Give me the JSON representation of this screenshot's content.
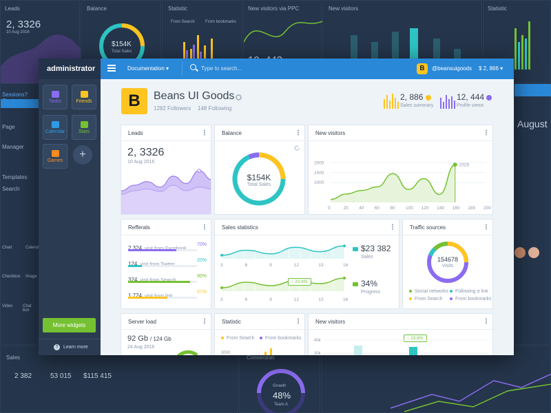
{
  "background": {
    "leads_title": "Leads",
    "leads_value": "2, 3326",
    "leads_date": "10 Aug 2016",
    "balance_title": "Balance",
    "balance_value": "$154K",
    "balance_sub": "Total Sales",
    "statistic_title": "Statistic",
    "statistic_leg1": "From Search",
    "statistic_leg2": "From bookmarks",
    "ppc_title": "New visitors via PPC",
    "ppc_value": "10, 443",
    "nv_title": "New visitors",
    "stat2_title": "Statistic",
    "sales_title": "Sales",
    "sales_v1": "2 382",
    "sales_v2": "53 015",
    "sales_v3": "$115 415",
    "conversion_title": "Conversion",
    "growth_label": "Growth",
    "growth_value": "48%",
    "growth_team": "Team A",
    "august": "August",
    "left_items": [
      "Page",
      "Manager",
      "Templates",
      "Search",
      "Chart",
      "Calendar",
      "Checkbox",
      "Image",
      "Video",
      "Chat box"
    ]
  },
  "sidebar": {
    "brand": "administrator",
    "tiles": [
      {
        "label": "Tasks",
        "icon": "tasks-icon",
        "color": "#8a6cf0"
      },
      {
        "label": "Friends",
        "icon": "friends-icon",
        "color": "#ffc420"
      },
      {
        "label": "Calendar",
        "icon": "calendar-icon",
        "color": "#2d9be6"
      },
      {
        "label": "Stats",
        "icon": "stats-icon",
        "color": "#75c132"
      },
      {
        "label": "Games",
        "icon": "games-icon",
        "color": "#ff8a1f"
      }
    ],
    "more_widgets": "More widgets",
    "learn_more": "Learn more"
  },
  "topbar": {
    "documentation": "Documentation",
    "search_placeholder": "Type to search...",
    "user_initial": "B",
    "username": "@beansuigoods",
    "balance": "$ 2, 866"
  },
  "header": {
    "logo_letter": "B",
    "company": "Beans UI Goods",
    "followers": "1282 Followers",
    "following": "148 Following",
    "sales_summary_value": "2, 886",
    "sales_summary_label": "Sales summary",
    "profile_views_value": "12, 444",
    "profile_views_label": "Profile views"
  },
  "leads": {
    "title": "Leads",
    "value": "2, 3326",
    "date": "10 Aug 2016"
  },
  "balance": {
    "title": "Balance",
    "value": "$154K",
    "label": "Total Sales"
  },
  "referrals": {
    "title": "Refferals",
    "items": [
      {
        "value": "2 324",
        "text": "visit from Facebook",
        "pct": "70%",
        "fill": 0.7,
        "color": "#8a6cf0"
      },
      {
        "value": "124",
        "text": "visit from Twitter",
        "pct": "20%",
        "fill": 0.2,
        "color": "#2ec4c4"
      },
      {
        "value": "324",
        "text": "visit from Search",
        "pct": "90%",
        "fill": 0.9,
        "color": "#75c132"
      },
      {
        "value": "1 724",
        "text": "visit from link",
        "pct": "57%",
        "fill": 0.57,
        "color": "#ffc420"
      }
    ]
  },
  "sales_stats": {
    "title": "Sales statistics",
    "sales_value": "$23 382",
    "sales_label": "Sales",
    "progress_value": "34%",
    "progress_label": "Progress",
    "tooltip": "23.8%"
  },
  "traffic": {
    "title": "Traffic sources",
    "value": "154678",
    "label": "Visits",
    "legend": [
      "Social networks",
      "Following a link",
      "From Search",
      "From bookmarks"
    ]
  },
  "server_load": {
    "title": "Server load",
    "value": "92 Gb",
    "total": "/ 124 Gb",
    "date": "24 Aug 2016"
  },
  "statistic": {
    "title": "Statistic",
    "leg1": "From Search",
    "leg2": "From bookmarks"
  },
  "new_visitors_bottom": {
    "title": "New visitors",
    "tooltip": "23.8%"
  },
  "chart_data": [
    {
      "type": "line",
      "title": "New visitors",
      "x": [
        0,
        20,
        40,
        60,
        80,
        100,
        120,
        140,
        160
      ],
      "series": [
        {
          "values": [
            150,
            420,
            600,
            780,
            1450,
            650,
            1200,
            400,
            1900
          ]
        }
      ],
      "annotation": "2025",
      "xlim": [
        0,
        200
      ],
      "ylim": [
        0,
        2500
      ],
      "yticks": [
        1000,
        1500,
        2000
      ],
      "xticks": [
        0,
        20,
        40,
        60,
        80,
        100,
        120,
        140,
        160,
        180,
        200
      ]
    },
    {
      "type": "line",
      "title": "Sales statistics",
      "x": [
        3,
        6,
        9,
        12,
        13,
        16
      ],
      "xticks": [
        3,
        6,
        9,
        12,
        13,
        16
      ],
      "series": [
        {
          "values": [
            45,
            52,
            47,
            56,
            50,
            58
          ]
        },
        {
          "values": [
            30,
            38,
            33,
            40,
            36,
            44
          ]
        }
      ]
    },
    {
      "type": "line",
      "title": "Leads",
      "series": [
        {
          "values": [
            30,
            45,
            55,
            40,
            70,
            50,
            85,
            60
          ]
        },
        {
          "values": [
            20,
            30,
            35,
            28,
            45,
            30,
            40,
            35
          ]
        }
      ]
    }
  ]
}
